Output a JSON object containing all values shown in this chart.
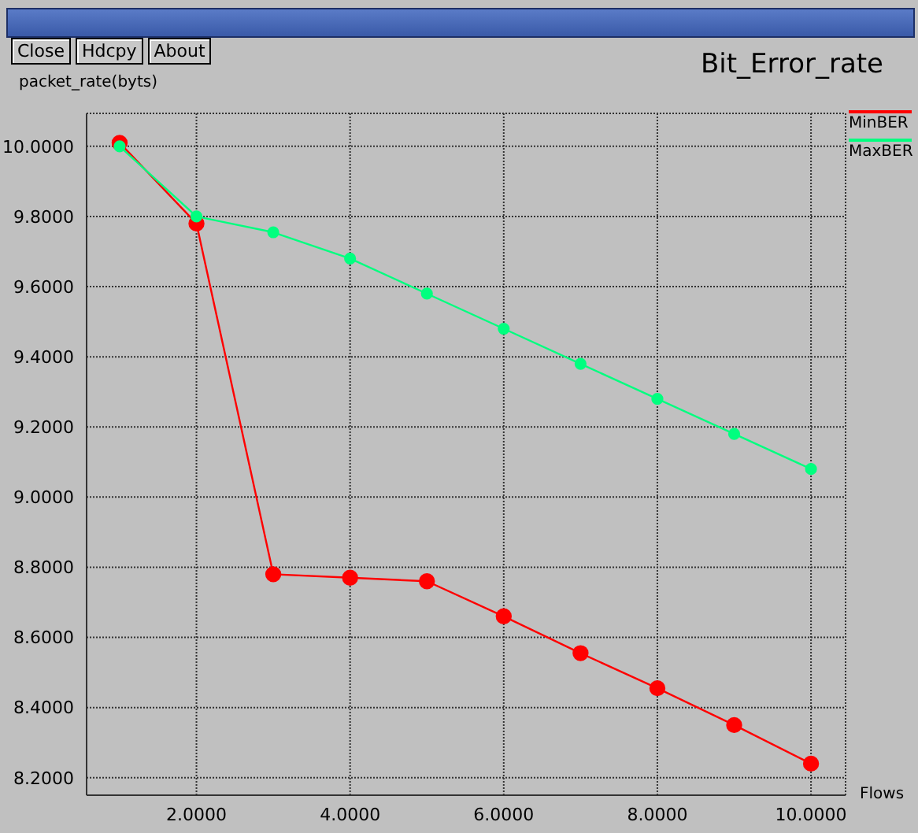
{
  "chart_data": {
    "type": "line",
    "title": "Bit_Error_rate",
    "xlabel": "Flows",
    "ylabel": "packet_rate(byts)",
    "annotations": [
      "Close",
      "Hdcpy",
      "About"
    ],
    "x": [
      1,
      2,
      3,
      4,
      5,
      6,
      7,
      8,
      9,
      10
    ],
    "series": [
      {
        "name": "MinBER",
        "color": "#ff0000",
        "values": [
          10.01,
          9.78,
          8.78,
          8.77,
          8.76,
          8.66,
          8.555,
          8.455,
          8.35,
          8.24
        ]
      },
      {
        "name": "MaxBER",
        "color": "#00ff7f",
        "values": [
          10.0,
          9.8,
          9.755,
          9.68,
          9.58,
          9.48,
          9.38,
          9.28,
          9.18,
          9.08
        ]
      }
    ],
    "xlim": [
      0.57,
      10.45
    ],
    "xticks": [
      {
        "value": 2,
        "label": "2.0000"
      },
      {
        "value": 4,
        "label": "4.0000"
      },
      {
        "value": 6,
        "label": "6.0000"
      },
      {
        "value": 8,
        "label": "8.0000"
      },
      {
        "value": 10,
        "label": "10.0000"
      }
    ],
    "ylim": [
      8.15,
      10.094
    ],
    "yticks": [
      {
        "value": 8.2,
        "label": "8.2000"
      },
      {
        "value": 8.4,
        "label": "8.4000"
      },
      {
        "value": 8.6,
        "label": "8.6000"
      },
      {
        "value": 8.8,
        "label": "8.8000"
      },
      {
        "value": 9.0,
        "label": "9.0000"
      },
      {
        "value": 9.2,
        "label": "9.2000"
      },
      {
        "value": 9.4,
        "label": "9.4000"
      },
      {
        "value": 9.6,
        "label": "9.6000"
      },
      {
        "value": 9.8,
        "label": "9.8000"
      },
      {
        "value": 10.0,
        "label": "10.0000"
      }
    ],
    "grid": true,
    "legend": "right",
    "marker": "circle",
    "line_style": "solid"
  }
}
